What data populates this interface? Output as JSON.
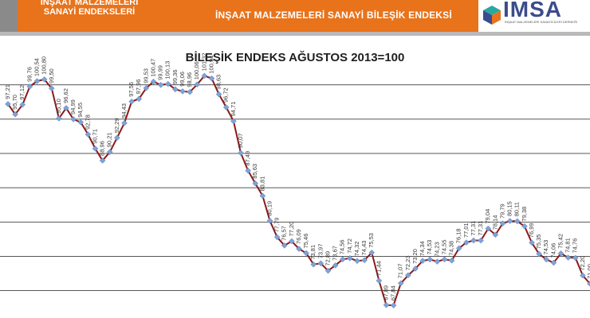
{
  "header": {
    "left_title_line1": "İNŞAAT MALZEMELERİ",
    "left_title_line2": "SANAYİ ENDEKSLERİ",
    "right_title": "İNŞAAT MALZEMELERİ SANAYİ BİLEŞİK ENDEKSİ",
    "logo_text": "İMSA",
    "logo_sub": "İNŞAAT MALZEMELERİ SANAYİCİLERİ DERNEĞİ",
    "accent_color": "#e8731b",
    "logo_color": "#3b4c8c"
  },
  "chart_data": {
    "type": "line",
    "title": "BİLEŞİK ENDEKS AĞUSTOS 2013=100",
    "xlabel": "",
    "ylabel": "",
    "ylim": [
      66,
      106
    ],
    "grid": true,
    "series_color": "#8b1a1a",
    "marker_color": "#7fa3d6",
    "series": [
      {
        "name": "",
        "values": [
          97.21,
          95.7,
          97.12,
          99.76,
          100.54,
          100.8,
          99.5,
          95.1,
          96.62,
          94.99,
          94.55,
          92.78,
          90.71,
          88.96,
          90.21,
          92.29,
          94.43,
          97.56,
          97.96,
          99.53,
          100.47,
          99.99,
          100.13,
          99.36,
          99.06,
          98.96,
          100.06,
          101.32,
          100.94,
          98.63,
          96.72,
          94.71,
          90.07,
          87.49,
          85.63,
          83.81,
          80.19,
          77.79,
          76.57,
          77.2,
          76.09,
          75.46,
          73.81,
          73.97,
          72.89,
          73.67,
          74.56,
          74.72,
          74.32,
          74.43,
          75.53,
          71.44,
          67.89,
          67.84,
          71.07,
          72.23,
          73.2,
          74.34,
          74.53,
          74.23,
          74.55,
          74.38,
          76.18,
          77.01,
          77.31,
          77.31,
          79.04,
          78.14,
          79.79,
          80.15,
          80.11,
          79.38,
          76.99,
          75.35,
          74.53,
          74.06,
          75.42,
          74.81,
          74.76,
          72.2,
          71.0
        ]
      }
    ]
  }
}
